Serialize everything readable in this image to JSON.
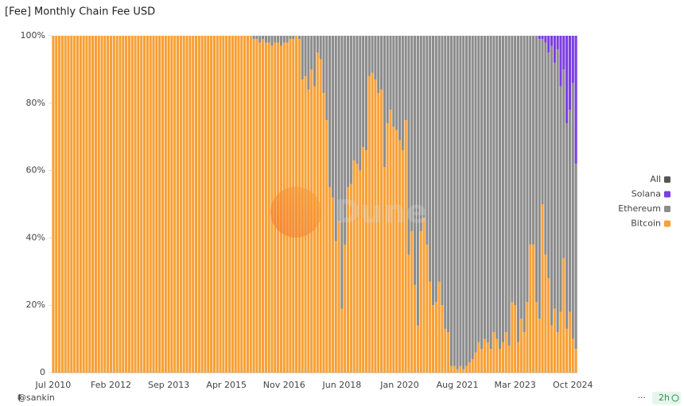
{
  "chart_data": {
    "type": "stacked_bar_percent",
    "title": "[Fee] Monthly Chain Fee USD",
    "categories": [
      "Jul 2010",
      null,
      null,
      null,
      null,
      null,
      null,
      null,
      null,
      null,
      null,
      null,
      null,
      null,
      null,
      null,
      null,
      null,
      null,
      "Feb 2012",
      null,
      null,
      null,
      null,
      null,
      null,
      null,
      null,
      null,
      null,
      null,
      null,
      null,
      null,
      null,
      null,
      null,
      null,
      "Sep 2013",
      null,
      null,
      null,
      null,
      null,
      null,
      null,
      null,
      null,
      null,
      null,
      null,
      null,
      null,
      null,
      null,
      null,
      null,
      "Apr 2015",
      null,
      null,
      null,
      null,
      null,
      null,
      null,
      null,
      null,
      null,
      null,
      null,
      null,
      null,
      null,
      null,
      null,
      null,
      "Nov 2016",
      null,
      null,
      null,
      null,
      null,
      null,
      null,
      null,
      null,
      null,
      null,
      null,
      null,
      null,
      null,
      null,
      null,
      null,
      "Jun 2018",
      null,
      null,
      null,
      null,
      null,
      null,
      null,
      null,
      null,
      null,
      null,
      null,
      null,
      null,
      null,
      null,
      null,
      null,
      "Jan 2020",
      null,
      null,
      null,
      null,
      null,
      null,
      null,
      null,
      null,
      null,
      null,
      null,
      null,
      null,
      null,
      null,
      null,
      null,
      "Aug 2021",
      null,
      null,
      null,
      null,
      null,
      null,
      null,
      null,
      null,
      null,
      null,
      null,
      null,
      null,
      null,
      null,
      null,
      null,
      "Mar 2023",
      null,
      null,
      null,
      null,
      null,
      null,
      null,
      null,
      null,
      null,
      null,
      null,
      null,
      null,
      null,
      null,
      null,
      null,
      "Oct 2024",
      null
    ],
    "series": [
      {
        "name": "Bitcoin",
        "color": "#f7a035",
        "values": [
          100,
          100,
          100,
          100,
          100,
          100,
          100,
          100,
          100,
          100,
          100,
          100,
          100,
          100,
          100,
          100,
          100,
          100,
          100,
          100,
          100,
          100,
          100,
          100,
          100,
          100,
          100,
          100,
          100,
          100,
          100,
          100,
          100,
          100,
          100,
          100,
          100,
          100,
          100,
          100,
          100,
          100,
          100,
          100,
          100,
          100,
          100,
          100,
          100,
          100,
          100,
          100,
          100,
          100,
          100,
          100,
          100,
          100,
          100,
          100,
          100,
          100,
          100,
          100,
          100,
          100,
          99,
          99,
          98,
          99,
          98,
          98,
          97,
          98,
          98,
          97,
          98,
          98,
          99,
          99,
          100,
          99,
          87,
          88,
          84,
          90,
          85,
          95,
          93,
          83,
          75,
          55,
          52,
          39,
          45,
          19,
          38,
          55,
          56,
          63,
          62,
          60,
          67,
          66,
          88,
          89,
          87,
          83,
          84,
          61,
          74,
          78,
          73,
          72,
          69,
          66,
          75,
          35,
          42,
          26,
          14,
          42,
          46,
          38,
          27,
          20,
          21,
          27,
          20,
          13,
          12,
          2,
          2,
          1,
          2,
          1,
          2,
          3,
          4,
          6,
          9,
          7,
          10,
          9,
          7,
          12,
          10,
          7,
          9,
          12,
          8,
          21,
          20,
          9,
          16,
          12,
          21,
          38,
          38,
          21,
          16,
          50,
          35,
          28,
          14,
          19,
          12,
          18,
          34,
          13,
          18,
          10,
          7
        ]
      },
      {
        "name": "Ethereum",
        "color": "#8c8c8c",
        "values": [
          0,
          0,
          0,
          0,
          0,
          0,
          0,
          0,
          0,
          0,
          0,
          0,
          0,
          0,
          0,
          0,
          0,
          0,
          0,
          0,
          0,
          0,
          0,
          0,
          0,
          0,
          0,
          0,
          0,
          0,
          0,
          0,
          0,
          0,
          0,
          0,
          0,
          0,
          0,
          0,
          0,
          0,
          0,
          0,
          0,
          0,
          0,
          0,
          0,
          0,
          0,
          0,
          0,
          0,
          0,
          0,
          0,
          0,
          0,
          0,
          0,
          0,
          0,
          0,
          0,
          0,
          1,
          1,
          2,
          1,
          2,
          2,
          3,
          2,
          2,
          3,
          2,
          2,
          1,
          1,
          0,
          1,
          13,
          12,
          16,
          10,
          15,
          5,
          7,
          17,
          25,
          45,
          48,
          61,
          55,
          81,
          62,
          45,
          44,
          37,
          38,
          40,
          33,
          34,
          12,
          11,
          13,
          17,
          16,
          39,
          26,
          22,
          27,
          28,
          31,
          34,
          25,
          65,
          58,
          74,
          86,
          58,
          54,
          62,
          73,
          80,
          79,
          73,
          80,
          87,
          88,
          98,
          98,
          99,
          98,
          99,
          98,
          97,
          96,
          94,
          91,
          93,
          90,
          91,
          93,
          88,
          90,
          93,
          91,
          88,
          92,
          79,
          80,
          91,
          84,
          88,
          79,
          62,
          62,
          79,
          83,
          49,
          63,
          67,
          83,
          73,
          84,
          67,
          56,
          61,
          60,
          76,
          55
        ]
      },
      {
        "name": "Solana",
        "color": "#7d3ee0",
        "values": [
          0,
          0,
          0,
          0,
          0,
          0,
          0,
          0,
          0,
          0,
          0,
          0,
          0,
          0,
          0,
          0,
          0,
          0,
          0,
          0,
          0,
          0,
          0,
          0,
          0,
          0,
          0,
          0,
          0,
          0,
          0,
          0,
          0,
          0,
          0,
          0,
          0,
          0,
          0,
          0,
          0,
          0,
          0,
          0,
          0,
          0,
          0,
          0,
          0,
          0,
          0,
          0,
          0,
          0,
          0,
          0,
          0,
          0,
          0,
          0,
          0,
          0,
          0,
          0,
          0,
          0,
          0,
          0,
          0,
          0,
          0,
          0,
          0,
          0,
          0,
          0,
          0,
          0,
          0,
          0,
          0,
          0,
          0,
          0,
          0,
          0,
          0,
          0,
          0,
          0,
          0,
          0,
          0,
          0,
          0,
          0,
          0,
          0,
          0,
          0,
          0,
          0,
          0,
          0,
          0,
          0,
          0,
          0,
          0,
          0,
          0,
          0,
          0,
          0,
          0,
          0,
          0,
          0,
          0,
          0,
          0,
          0,
          0,
          0,
          0,
          0,
          0,
          0,
          0,
          0,
          0,
          0,
          0,
          0,
          0,
          0,
          0,
          0,
          0,
          0,
          0,
          0,
          0,
          0,
          0,
          0,
          0,
          0,
          0,
          0,
          0,
          0,
          0,
          0,
          0,
          0,
          0,
          0,
          0,
          0,
          1,
          1,
          2,
          5,
          3,
          8,
          4,
          15,
          10,
          26,
          22,
          14,
          38
        ]
      }
    ],
    "ylim": [
      0,
      100
    ],
    "yticks": [
      0,
      {
        "value": 20,
        "label": "20%"
      },
      {
        "value": 40,
        "label": "40%"
      },
      {
        "value": 60,
        "label": "60%"
      },
      {
        "value": 80,
        "label": "80%"
      },
      {
        "value": 100,
        "label": "100%"
      }
    ],
    "grid": false,
    "legend": "right",
    "legend_all_label": "All",
    "legend_all_color": "#555555",
    "watermark": "Dune",
    "author": "@sankin",
    "age": "2h"
  }
}
